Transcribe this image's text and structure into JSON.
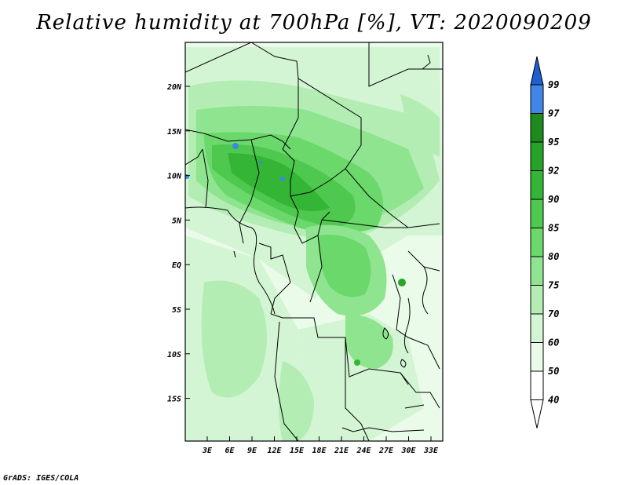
{
  "title": "Relative humidity at 700hPa [%], VT: 2020090209",
  "credit": "GrADS: IGES/COLA",
  "y_axis": {
    "labels": [
      "20N",
      "15N",
      "10N",
      "5N",
      "EQ",
      "5S",
      "10S",
      "15S"
    ]
  },
  "x_axis": {
    "labels": [
      "3E",
      "6E",
      "9E",
      "12E",
      "15E",
      "18E",
      "21E",
      "24E",
      "27E",
      "30E",
      "33E"
    ]
  },
  "colorbar": {
    "labels": [
      "99",
      "97",
      "95",
      "92",
      "90",
      "85",
      "80",
      "75",
      "70",
      "60",
      "50",
      "40"
    ],
    "colors": [
      "#1e5fd0",
      "#3f86e6",
      "#1c8a1c",
      "#27a327",
      "#35b535",
      "#4ec84e",
      "#6ad86a",
      "#8fe48f",
      "#b3edb3",
      "#d3f5d3",
      "#eafbea",
      "#ffffff"
    ]
  }
}
